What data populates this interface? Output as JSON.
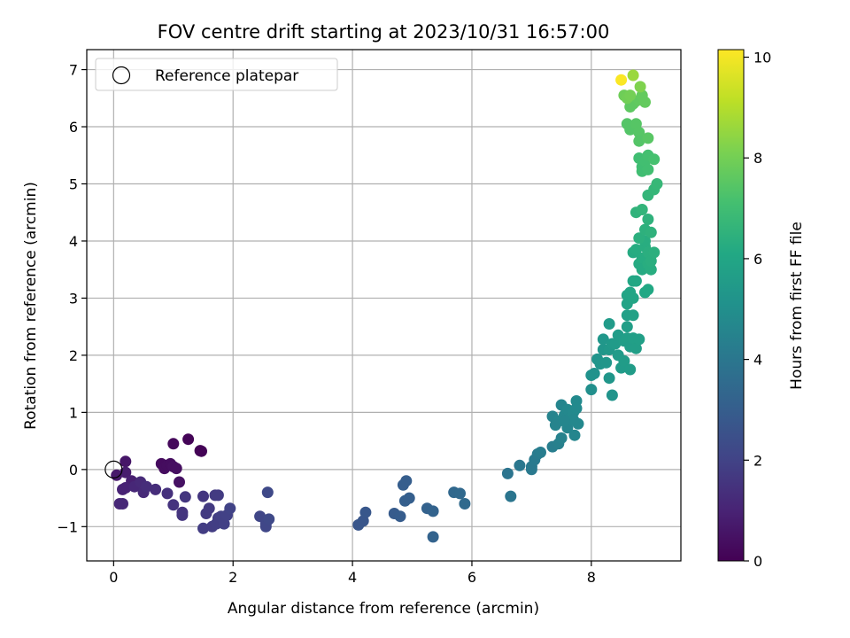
{
  "chart_data": {
    "type": "scatter",
    "title": "FOV centre drift starting at 2023/10/31 16:57:00",
    "xlabel": "Angular distance from reference (arcmin)",
    "ylabel": "Rotation from reference (arcmin)",
    "xlim": [
      -0.45,
      9.5
    ],
    "ylim": [
      -1.6,
      7.35
    ],
    "xticks": [
      0,
      2,
      4,
      6,
      8
    ],
    "yticks": [
      -1,
      0,
      1,
      2,
      3,
      4,
      5,
      6,
      7
    ],
    "xtick_labels": [
      "0",
      "2",
      "4",
      "6",
      "8"
    ],
    "ytick_labels": [
      "−1",
      "0",
      "1",
      "2",
      "3",
      "4",
      "5",
      "6",
      "7"
    ],
    "grid": true,
    "legend": {
      "placement": "top-left",
      "entries": [
        "Reference platepar"
      ]
    },
    "reference_point": {
      "x": 0,
      "y": 0
    },
    "colorbar": {
      "label": "Hours from first FF file",
      "range": [
        0,
        10.15
      ],
      "ticks": [
        0,
        2,
        4,
        6,
        8,
        10
      ],
      "tick_labels": [
        "0",
        "2",
        "4",
        "6",
        "8",
        "10"
      ],
      "colormap": "viridis"
    },
    "series": [
      {
        "points": [
          {
            "x": 1.0,
            "y": 0.45,
            "c": 0.2
          },
          {
            "x": 1.25,
            "y": 0.53,
            "c": 0.1
          },
          {
            "x": 1.45,
            "y": 0.33,
            "c": 0.05
          },
          {
            "x": 1.47,
            "y": 0.32,
            "c": 0.05
          },
          {
            "x": 0.8,
            "y": 0.1,
            "c": 0.3
          },
          {
            "x": 0.85,
            "y": 0.02,
            "c": 0.35
          },
          {
            "x": 0.9,
            "y": 0.07,
            "c": 0.35
          },
          {
            "x": 0.95,
            "y": 0.1,
            "c": 0.35
          },
          {
            "x": 1.0,
            "y": 0.05,
            "c": 0.4
          },
          {
            "x": 1.05,
            "y": 0.02,
            "c": 0.4
          },
          {
            "x": 1.1,
            "y": -0.22,
            "c": 0.45
          },
          {
            "x": 0.2,
            "y": 0.14,
            "c": 0.6
          },
          {
            "x": 0.05,
            "y": -0.1,
            "c": 0.7
          },
          {
            "x": 0.2,
            "y": -0.05,
            "c": 0.8
          },
          {
            "x": 0.3,
            "y": -0.2,
            "c": 0.9
          },
          {
            "x": 0.15,
            "y": -0.35,
            "c": 1.0
          },
          {
            "x": 0.2,
            "y": -0.32,
            "c": 1.0
          },
          {
            "x": 0.35,
            "y": -0.3,
            "c": 1.1
          },
          {
            "x": 0.45,
            "y": -0.22,
            "c": 1.2
          },
          {
            "x": 0.5,
            "y": -0.4,
            "c": 1.2
          },
          {
            "x": 0.55,
            "y": -0.3,
            "c": 1.3
          },
          {
            "x": 0.7,
            "y": -0.35,
            "c": 1.3
          },
          {
            "x": 0.9,
            "y": -0.42,
            "c": 1.4
          },
          {
            "x": 0.1,
            "y": -0.6,
            "c": 1.1
          },
          {
            "x": 0.15,
            "y": -0.6,
            "c": 1.15
          },
          {
            "x": 1.0,
            "y": -0.62,
            "c": 1.5
          },
          {
            "x": 1.15,
            "y": -0.75,
            "c": 1.5
          },
          {
            "x": 1.15,
            "y": -0.8,
            "c": 1.55
          },
          {
            "x": 1.2,
            "y": -0.48,
            "c": 1.6
          },
          {
            "x": 1.5,
            "y": -0.47,
            "c": 1.6
          },
          {
            "x": 1.55,
            "y": -0.77,
            "c": 1.7
          },
          {
            "x": 1.6,
            "y": -0.68,
            "c": 1.7
          },
          {
            "x": 1.7,
            "y": -0.45,
            "c": 1.7
          },
          {
            "x": 1.75,
            "y": -0.45,
            "c": 1.75
          },
          {
            "x": 1.5,
            "y": -1.03,
            "c": 1.8
          },
          {
            "x": 1.65,
            "y": -1.0,
            "c": 1.8
          },
          {
            "x": 1.72,
            "y": -0.95,
            "c": 1.85
          },
          {
            "x": 1.75,
            "y": -0.85,
            "c": 1.85
          },
          {
            "x": 1.8,
            "y": -0.82,
            "c": 1.9
          },
          {
            "x": 1.85,
            "y": -0.95,
            "c": 1.9
          },
          {
            "x": 1.9,
            "y": -0.8,
            "c": 1.95
          },
          {
            "x": 1.95,
            "y": -0.68,
            "c": 2.0
          },
          {
            "x": 2.45,
            "y": -0.82,
            "c": 2.1
          },
          {
            "x": 2.55,
            "y": -0.95,
            "c": 2.15
          },
          {
            "x": 2.55,
            "y": -1.0,
            "c": 2.15
          },
          {
            "x": 2.6,
            "y": -0.87,
            "c": 2.2
          },
          {
            "x": 2.58,
            "y": -0.4,
            "c": 2.2
          },
          {
            "x": 4.1,
            "y": -0.97,
            "c": 2.7
          },
          {
            "x": 4.18,
            "y": -0.9,
            "c": 2.7
          },
          {
            "x": 4.22,
            "y": -0.75,
            "c": 2.75
          },
          {
            "x": 4.7,
            "y": -0.77,
            "c": 2.9
          },
          {
            "x": 4.8,
            "y": -0.82,
            "c": 2.95
          },
          {
            "x": 4.85,
            "y": -0.27,
            "c": 3.0
          },
          {
            "x": 4.9,
            "y": -0.2,
            "c": 3.0
          },
          {
            "x": 4.88,
            "y": -0.55,
            "c": 3.05
          },
          {
            "x": 4.95,
            "y": -0.5,
            "c": 3.05
          },
          {
            "x": 5.25,
            "y": -0.68,
            "c": 3.15
          },
          {
            "x": 5.35,
            "y": -0.73,
            "c": 3.2
          },
          {
            "x": 5.35,
            "y": -1.18,
            "c": 3.2
          },
          {
            "x": 5.7,
            "y": -0.4,
            "c": 3.4
          },
          {
            "x": 5.8,
            "y": -0.42,
            "c": 3.45
          },
          {
            "x": 5.88,
            "y": -0.6,
            "c": 3.5
          },
          {
            "x": 6.6,
            "y": -0.07,
            "c": 3.9
          },
          {
            "x": 6.65,
            "y": -0.47,
            "c": 3.95
          },
          {
            "x": 6.8,
            "y": 0.07,
            "c": 4.0
          },
          {
            "x": 7.0,
            "y": 0.05,
            "c": 4.1
          },
          {
            "x": 7.0,
            "y": 0.0,
            "c": 4.1
          },
          {
            "x": 7.05,
            "y": 0.17,
            "c": 4.15
          },
          {
            "x": 7.1,
            "y": 0.27,
            "c": 4.2
          },
          {
            "x": 7.15,
            "y": 0.3,
            "c": 4.25
          },
          {
            "x": 7.35,
            "y": 0.4,
            "c": 4.3
          },
          {
            "x": 7.35,
            "y": 0.93,
            "c": 4.5
          },
          {
            "x": 7.45,
            "y": 0.85,
            "c": 4.6
          },
          {
            "x": 7.45,
            "y": 0.45,
            "c": 4.4
          },
          {
            "x": 7.5,
            "y": 0.55,
            "c": 4.45
          },
          {
            "x": 7.5,
            "y": 1.13,
            "c": 4.6
          },
          {
            "x": 7.55,
            "y": 0.95,
            "c": 4.65
          },
          {
            "x": 7.6,
            "y": 0.73,
            "c": 4.6
          },
          {
            "x": 7.6,
            "y": 1.05,
            "c": 4.7
          },
          {
            "x": 7.65,
            "y": 0.9,
            "c": 4.7
          },
          {
            "x": 7.7,
            "y": 1.0,
            "c": 4.75
          },
          {
            "x": 7.72,
            "y": 0.6,
            "c": 4.6
          },
          {
            "x": 7.75,
            "y": 1.2,
            "c": 4.8
          },
          {
            "x": 7.75,
            "y": 1.07,
            "c": 4.8
          },
          {
            "x": 7.78,
            "y": 0.8,
            "c": 4.7
          },
          {
            "x": 7.7,
            "y": 0.87,
            "c": 4.72
          },
          {
            "x": 7.4,
            "y": 0.78,
            "c": 4.55
          },
          {
            "x": 7.55,
            "y": 0.85,
            "c": 4.62
          },
          {
            "x": 8.0,
            "y": 1.4,
            "c": 5.0
          },
          {
            "x": 8.0,
            "y": 1.65,
            "c": 5.1
          },
          {
            "x": 8.05,
            "y": 1.68,
            "c": 5.1
          },
          {
            "x": 8.1,
            "y": 1.93,
            "c": 5.2
          },
          {
            "x": 8.15,
            "y": 1.85,
            "c": 5.25
          },
          {
            "x": 8.2,
            "y": 2.1,
            "c": 5.3
          },
          {
            "x": 8.2,
            "y": 2.28,
            "c": 5.35
          },
          {
            "x": 8.25,
            "y": 1.87,
            "c": 5.3
          },
          {
            "x": 8.3,
            "y": 2.1,
            "c": 5.4
          },
          {
            "x": 8.3,
            "y": 1.6,
            "c": 5.3
          },
          {
            "x": 8.35,
            "y": 2.2,
            "c": 5.45
          },
          {
            "x": 8.35,
            "y": 1.3,
            "c": 5.2
          },
          {
            "x": 8.3,
            "y": 2.55,
            "c": 5.5
          },
          {
            "x": 8.4,
            "y": 2.2,
            "c": 5.5
          },
          {
            "x": 8.45,
            "y": 2.0,
            "c": 5.5
          },
          {
            "x": 8.45,
            "y": 2.35,
            "c": 5.55
          },
          {
            "x": 8.5,
            "y": 1.78,
            "c": 5.5
          },
          {
            "x": 8.55,
            "y": 2.25,
            "c": 5.6
          },
          {
            "x": 8.55,
            "y": 1.9,
            "c": 5.55
          },
          {
            "x": 8.6,
            "y": 2.5,
            "c": 5.65
          },
          {
            "x": 8.6,
            "y": 2.3,
            "c": 5.65
          },
          {
            "x": 8.65,
            "y": 2.15,
            "c": 5.6
          },
          {
            "x": 8.65,
            "y": 1.75,
            "c": 5.55
          },
          {
            "x": 8.7,
            "y": 2.3,
            "c": 5.7
          },
          {
            "x": 8.75,
            "y": 2.12,
            "c": 5.65
          },
          {
            "x": 8.8,
            "y": 2.28,
            "c": 5.7
          },
          {
            "x": 8.6,
            "y": 2.7,
            "c": 5.75
          },
          {
            "x": 8.7,
            "y": 2.7,
            "c": 5.8
          },
          {
            "x": 8.6,
            "y": 2.9,
            "c": 5.85
          },
          {
            "x": 8.6,
            "y": 3.05,
            "c": 5.9
          },
          {
            "x": 8.65,
            "y": 3.1,
            "c": 5.95
          },
          {
            "x": 8.7,
            "y": 3.0,
            "c": 5.95
          },
          {
            "x": 8.7,
            "y": 3.3,
            "c": 6.0
          },
          {
            "x": 8.75,
            "y": 3.3,
            "c": 6.05
          },
          {
            "x": 8.9,
            "y": 3.1,
            "c": 6.05
          },
          {
            "x": 8.95,
            "y": 3.15,
            "c": 6.1
          },
          {
            "x": 8.7,
            "y": 3.8,
            "c": 6.2
          },
          {
            "x": 8.75,
            "y": 3.85,
            "c": 6.25
          },
          {
            "x": 8.8,
            "y": 3.6,
            "c": 6.2
          },
          {
            "x": 8.85,
            "y": 3.7,
            "c": 6.25
          },
          {
            "x": 8.85,
            "y": 3.5,
            "c": 6.2
          },
          {
            "x": 8.9,
            "y": 3.9,
            "c": 6.3
          },
          {
            "x": 8.9,
            "y": 4.0,
            "c": 6.3
          },
          {
            "x": 8.95,
            "y": 3.8,
            "c": 6.35
          },
          {
            "x": 8.95,
            "y": 3.6,
            "c": 6.3
          },
          {
            "x": 9.0,
            "y": 3.5,
            "c": 6.3
          },
          {
            "x": 9.0,
            "y": 3.65,
            "c": 6.35
          },
          {
            "x": 9.05,
            "y": 3.8,
            "c": 6.4
          },
          {
            "x": 8.8,
            "y": 4.05,
            "c": 6.4
          },
          {
            "x": 8.9,
            "y": 4.2,
            "c": 6.45
          },
          {
            "x": 8.95,
            "y": 4.38,
            "c": 6.5
          },
          {
            "x": 9.0,
            "y": 4.15,
            "c": 6.5
          },
          {
            "x": 8.75,
            "y": 4.5,
            "c": 6.55
          },
          {
            "x": 8.85,
            "y": 4.55,
            "c": 6.6
          },
          {
            "x": 8.95,
            "y": 4.8,
            "c": 6.65
          },
          {
            "x": 9.05,
            "y": 4.9,
            "c": 6.7
          },
          {
            "x": 9.1,
            "y": 5.0,
            "c": 6.75
          },
          {
            "x": 8.8,
            "y": 5.45,
            "c": 7.0
          },
          {
            "x": 8.85,
            "y": 5.3,
            "c": 7.0
          },
          {
            "x": 8.85,
            "y": 5.22,
            "c": 7.0
          },
          {
            "x": 8.9,
            "y": 5.4,
            "c": 7.05
          },
          {
            "x": 8.95,
            "y": 5.5,
            "c": 7.1
          },
          {
            "x": 8.95,
            "y": 5.25,
            "c": 7.05
          },
          {
            "x": 9.05,
            "y": 5.43,
            "c": 7.15
          },
          {
            "x": 8.6,
            "y": 6.05,
            "c": 7.4
          },
          {
            "x": 8.65,
            "y": 5.95,
            "c": 7.4
          },
          {
            "x": 8.75,
            "y": 6.05,
            "c": 7.45
          },
          {
            "x": 8.8,
            "y": 5.9,
            "c": 7.45
          },
          {
            "x": 8.8,
            "y": 5.75,
            "c": 7.4
          },
          {
            "x": 8.95,
            "y": 5.8,
            "c": 7.5
          },
          {
            "x": 8.7,
            "y": 6.4,
            "c": 7.6
          },
          {
            "x": 8.75,
            "y": 6.45,
            "c": 7.65
          },
          {
            "x": 8.65,
            "y": 6.35,
            "c": 7.6
          },
          {
            "x": 8.85,
            "y": 6.55,
            "c": 7.7
          },
          {
            "x": 8.9,
            "y": 6.43,
            "c": 7.7
          },
          {
            "x": 8.55,
            "y": 6.55,
            "c": 7.9
          },
          {
            "x": 8.6,
            "y": 6.5,
            "c": 7.95
          },
          {
            "x": 8.65,
            "y": 6.55,
            "c": 8.0
          },
          {
            "x": 8.82,
            "y": 6.7,
            "c": 8.2
          },
          {
            "x": 8.7,
            "y": 6.9,
            "c": 8.6
          },
          {
            "x": 8.5,
            "y": 6.82,
            "c": 10.1
          }
        ]
      }
    ]
  }
}
